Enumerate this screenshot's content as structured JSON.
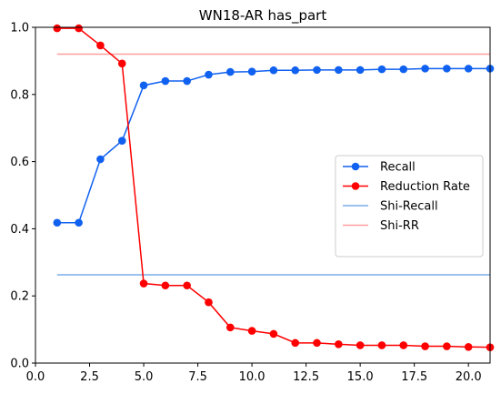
{
  "chart_data": {
    "type": "line",
    "title": "WN18-AR has_part",
    "xlabel": "",
    "ylabel": "",
    "xlim": [
      0,
      21
    ],
    "ylim": [
      0,
      1.0
    ],
    "x_ticks": [
      "0.0",
      "2.5",
      "5.0",
      "7.5",
      "10.0",
      "12.5",
      "15.0",
      "17.5",
      "20.0"
    ],
    "x_tick_values": [
      0,
      2.5,
      5.0,
      7.5,
      10.0,
      12.5,
      15.0,
      17.5,
      20.0
    ],
    "y_ticks": [
      "0.0",
      "0.2",
      "0.4",
      "0.6",
      "0.8",
      "1.0"
    ],
    "y_tick_values": [
      0,
      0.2,
      0.4,
      0.6,
      0.8,
      1.0
    ],
    "grid": false,
    "legend_position": "center-right",
    "x": [
      1,
      2,
      3,
      4,
      5,
      6,
      7,
      8,
      9,
      10,
      11,
      12,
      13,
      14,
      15,
      16,
      17,
      18,
      19,
      20,
      21
    ],
    "series": [
      {
        "name": "Recall",
        "color": "#1061f0",
        "marker": "circle",
        "values": [
          0.418,
          0.418,
          0.607,
          0.662,
          0.827,
          0.84,
          0.84,
          0.859,
          0.867,
          0.868,
          0.872,
          0.872,
          0.873,
          0.873,
          0.873,
          0.875,
          0.875,
          0.877,
          0.877,
          0.877,
          0.877
        ]
      },
      {
        "name": "Reduction Rate",
        "color": "#ff0000",
        "marker": "circle",
        "values": [
          0.997,
          0.997,
          0.946,
          0.892,
          0.237,
          0.231,
          0.231,
          0.181,
          0.106,
          0.096,
          0.087,
          0.06,
          0.06,
          0.056,
          0.053,
          0.053,
          0.053,
          0.05,
          0.05,
          0.048,
          0.047
        ]
      },
      {
        "name": "Shi-Recall",
        "color": "#7aaeea",
        "marker": "none",
        "constant": 0.263,
        "x_range": [
          1,
          21
        ]
      },
      {
        "name": "Shi-RR",
        "color": "#ff9e9e",
        "marker": "none",
        "constant": 0.92,
        "x_range": [
          1,
          21
        ]
      }
    ]
  }
}
